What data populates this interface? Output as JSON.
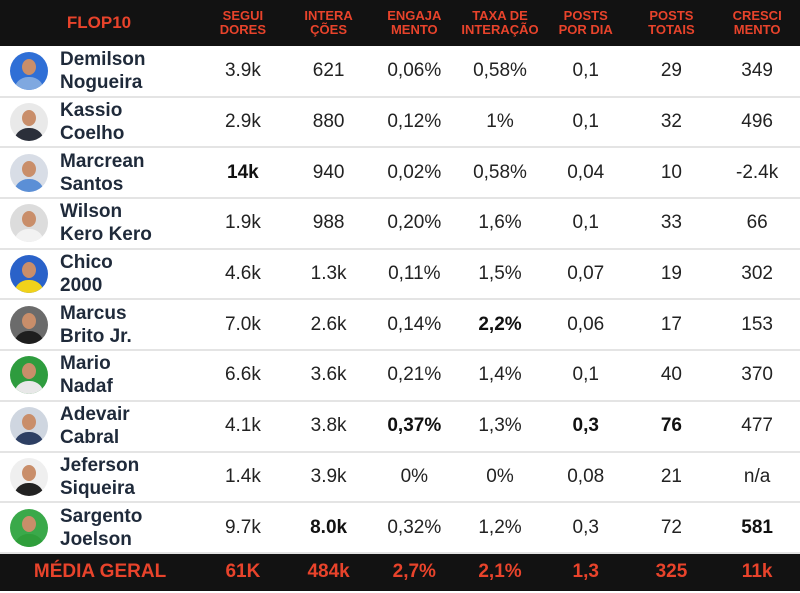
{
  "header": {
    "title": "FLOP10",
    "columns": [
      "SEGUI\nDORES",
      "INTERA\nÇÕES",
      "ENGAJA\nMENTO",
      "TAXA DE\nINTERAÇÃO",
      "POSTS\nPOR DIA",
      "POSTS\nTOTAIS",
      "CRESCI\nMENTO"
    ]
  },
  "chart_data": {
    "type": "table",
    "title": "FLOP10",
    "columns": [
      "SEGUIDORES",
      "INTERAÇÕES",
      "ENGAJAMENTO",
      "TAXA DE INTERAÇÃO",
      "POSTS POR DIA",
      "POSTS TOTAIS",
      "CRESCIMENTO"
    ],
    "rows": [
      {
        "name": "Demilson\nNogueira",
        "values": [
          "3.9k",
          "621",
          "0,06%",
          "0,58%",
          "0,1",
          "29",
          "349"
        ],
        "bold": [],
        "avatar_bg": "#2f6fd6",
        "shirt": "#7fa8e0"
      },
      {
        "name": "Kassio\nCoelho",
        "values": [
          "2.9k",
          "880",
          "0,12%",
          "1%",
          "0,1",
          "32",
          "496"
        ],
        "bold": [],
        "avatar_bg": "#e9e9e9",
        "shirt": "#2b2f3a"
      },
      {
        "name": "Marcrean\nSantos",
        "values": [
          "14k",
          "940",
          "0,02%",
          "0,58%",
          "0,04",
          "10",
          "-2.4k"
        ],
        "bold": [
          0
        ],
        "avatar_bg": "#d8dde6",
        "shirt": "#5b8fd6"
      },
      {
        "name": "Wilson\nKero Kero",
        "values": [
          "1.9k",
          "988",
          "0,20%",
          "1,6%",
          "0,1",
          "33",
          "66"
        ],
        "bold": [],
        "avatar_bg": "#dcdcdc",
        "shirt": "#f2f2f2"
      },
      {
        "name": "Chico\n2000",
        "values": [
          "4.6k",
          "1.3k",
          "0,11%",
          "1,5%",
          "0,07",
          "19",
          "302"
        ],
        "bold": [],
        "avatar_bg": "#2a62c9",
        "shirt": "#f1d21a"
      },
      {
        "name": "Marcus\nBrito Jr.",
        "values": [
          "7.0k",
          "2.6k",
          "0,14%",
          "2,2%",
          "0,06",
          "17",
          "153"
        ],
        "bold": [
          3
        ],
        "avatar_bg": "#6b6b6b",
        "shirt": "#1e1e1e"
      },
      {
        "name": "Mario\nNadaf",
        "values": [
          "6.6k",
          "3.6k",
          "0,21%",
          "1,4%",
          "0,1",
          "40",
          "370"
        ],
        "bold": [],
        "avatar_bg": "#2e9c3e",
        "shirt": "#e8e8e8"
      },
      {
        "name": "Adevair\nCabral",
        "values": [
          "4.1k",
          "3.8k",
          "0,37%",
          "1,3%",
          "0,3",
          "76",
          "477"
        ],
        "bold": [
          2,
          4,
          5
        ],
        "avatar_bg": "#cfd6e0",
        "shirt": "#2d3f63"
      },
      {
        "name": "Jeferson\nSiqueira",
        "values": [
          "1.4k",
          "3.9k",
          "0%",
          "0%",
          "0,08",
          "21",
          "n/a"
        ],
        "bold": [],
        "avatar_bg": "#efefef",
        "shirt": "#222222"
      },
      {
        "name": "Sargento\nJoelson",
        "values": [
          "9.7k",
          "8.0k",
          "0,32%",
          "1,2%",
          "0,3",
          "72",
          "581"
        ],
        "bold": [
          1,
          6
        ],
        "avatar_bg": "#3aa94a",
        "shirt": "#2f9e3b"
      }
    ],
    "footer": {
      "label": "MÉDIA GERAL",
      "values": [
        "61K",
        "484k",
        "2,7%",
        "2,1%",
        "1,3",
        "325",
        "11k"
      ]
    }
  },
  "colors": {
    "accent": "#e8432b",
    "dark_bg": "#121212"
  }
}
